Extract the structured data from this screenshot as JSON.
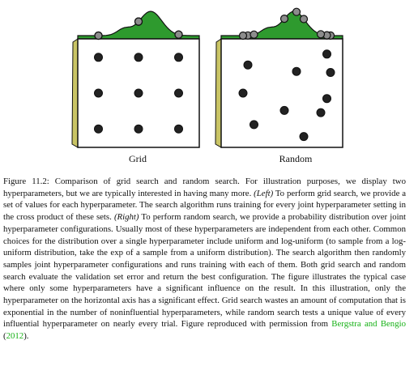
{
  "panels": [
    {
      "label": "Grid",
      "samples": [
        [
          0.17,
          0.17
        ],
        [
          0.5,
          0.17
        ],
        [
          0.83,
          0.17
        ],
        [
          0.17,
          0.5
        ],
        [
          0.5,
          0.5
        ],
        [
          0.83,
          0.5
        ],
        [
          0.17,
          0.83
        ],
        [
          0.5,
          0.83
        ],
        [
          0.83,
          0.83
        ]
      ]
    },
    {
      "label": "Random",
      "samples": [
        [
          0.87,
          0.14
        ],
        [
          0.22,
          0.24
        ],
        [
          0.62,
          0.3
        ],
        [
          0.9,
          0.31
        ],
        [
          0.18,
          0.5
        ],
        [
          0.87,
          0.55
        ],
        [
          0.52,
          0.66
        ],
        [
          0.82,
          0.68
        ],
        [
          0.27,
          0.79
        ],
        [
          0.68,
          0.9
        ]
      ]
    }
  ],
  "colors": {
    "marginal_fill": "#2e9a2e",
    "side_bar_fill": "#c9c465",
    "marker_fill": "#222222",
    "marginal_marker_fill": "#8c8c8c"
  },
  "caption": {
    "intro": "Figure 11.2: Comparison of grid search and random search. For illustration purposes, we display two hyperparameters, but we are typically interested in having many more.",
    "left_tag": "(Left)",
    "left_text": "To perform grid search, we provide a set of values for each hyperparameter. The search algorithm runs training for every joint hyperparameter setting in the cross product of these sets.",
    "right_tag": "(Right)",
    "right_text": "To perform random search, we provide a probability distribution over joint hyperparameter configurations. Usually most of these hyperparameters are independent from each other. Common choices for the distribution over a single hyperparameter include uniform and log-uniform (to sample from a log-uniform distribution, take the exp of a sample from a uniform distribution). The search algorithm then randomly samples joint hyperparameter configurations and runs training with each of them. Both grid search and random search evaluate the validation set error and return the best configuration. The figure illustrates the typical case where only some hyperparameters have a significant influence on the result. In this illustration, only the hyperparameter on the horizontal axis has a significant effect. Grid search wastes an amount of computation that is exponential in the number of noninfluential hyperparameters, while random search tests a unique value of every influential hyperparameter on nearly every trial. Figure reproduced with permission from",
    "cite_name": "Bergstra and Bengio",
    "cite_open": "(",
    "cite_year": "2012",
    "cite_close": ")."
  }
}
